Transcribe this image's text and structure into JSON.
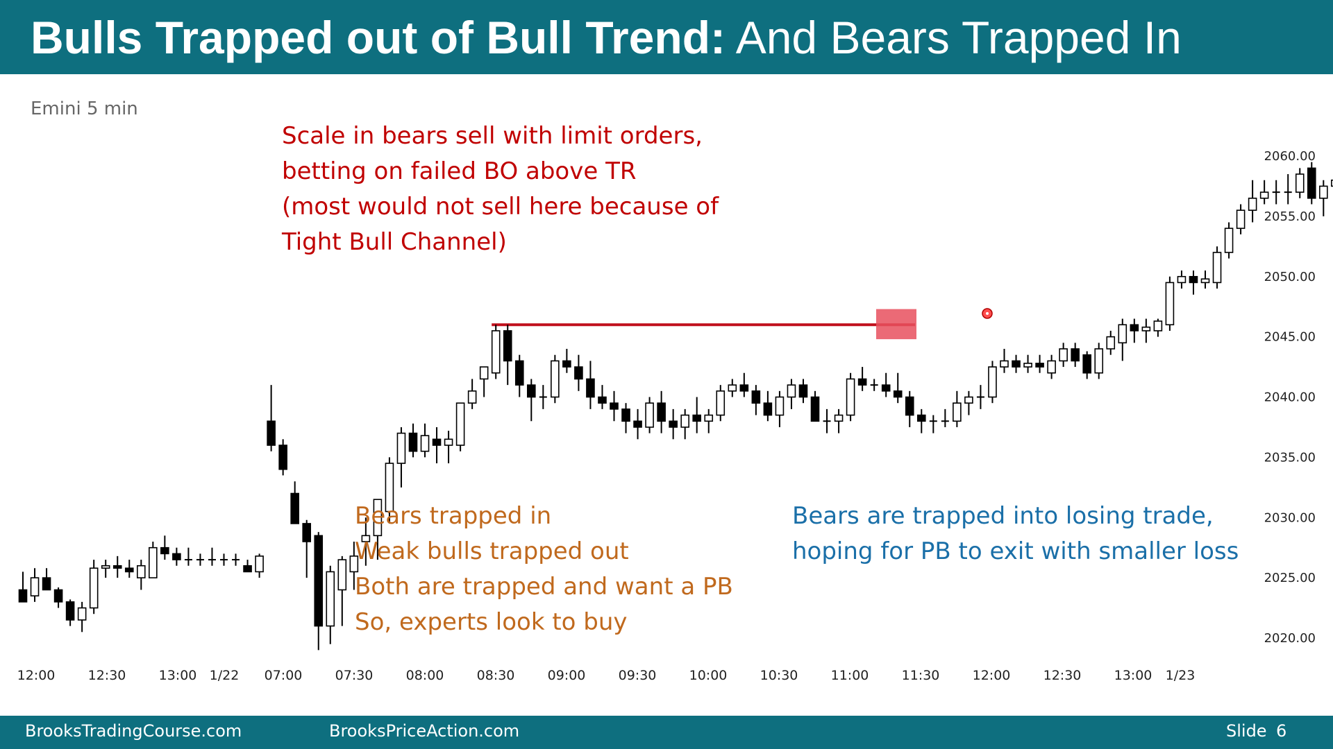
{
  "header": {
    "title_bold": "Bulls Trapped out of Bull Trend:",
    "title_normal": "And Bears Trapped In"
  },
  "chart_label": "Emini 5 min",
  "notes": {
    "red": [
      "Scale in bears sell with limit orders,",
      "betting on failed BO above TR",
      "(most would not sell here because of",
      "Tight Bull Channel)"
    ],
    "orange": [
      "Bears trapped in",
      "Weak bulls trapped out",
      "Both are trapped and want a PB",
      "So, experts look to buy"
    ],
    "blue": [
      "Bears are trapped into losing trade,",
      "hoping for PB to exit with smaller loss"
    ]
  },
  "footer": {
    "left": "BrooksTradingCourse.com",
    "middle": "BrooksPriceAction.com",
    "slide_label": "Slide",
    "slide_number": "6"
  },
  "colors": {
    "header_bg": "#0e6f7f",
    "red_note": "#c00000",
    "orange_note": "#c0691d",
    "blue_note": "#1a6fa8",
    "resistance_line": "#c0101c",
    "highlight": "#e8505e"
  },
  "chart_data": {
    "type": "candlestick",
    "title": "Emini 5 min",
    "ylim": [
      2017.5,
      2063.0
    ],
    "yticks": [
      "2060.00",
      "2055.00",
      "2050.00",
      "2045.00",
      "2040.00",
      "2035.00",
      "2030.00",
      "2025.00",
      "2020.00"
    ],
    "xticks": [
      "12:00",
      "12:30",
      "13:00",
      "1/22",
      "07:00",
      "07:30",
      "08:00",
      "08:30",
      "09:00",
      "09:30",
      "10:00",
      "10:30",
      "11:00",
      "11:30",
      "12:00",
      "12:30",
      "13:00",
      "1/23"
    ],
    "resistance_level": 2046.0,
    "bars": [
      [
        2024.0,
        2025.5,
        2023.0,
        2023.0
      ],
      [
        2023.5,
        2025.8,
        2023.0,
        2025.0
      ],
      [
        2025.0,
        2025.8,
        2024.0,
        2024.0
      ],
      [
        2024.0,
        2024.2,
        2022.5,
        2023.0
      ],
      [
        2023.0,
        2023.2,
        2021.0,
        2021.5
      ],
      [
        2021.5,
        2023.0,
        2020.5,
        2022.5
      ],
      [
        2022.5,
        2026.5,
        2022.0,
        2025.8
      ],
      [
        2025.8,
        2026.5,
        2025.0,
        2026.0
      ],
      [
        2026.0,
        2026.8,
        2025.0,
        2025.8
      ],
      [
        2025.8,
        2026.5,
        2025.0,
        2025.5
      ],
      [
        2025.0,
        2026.5,
        2024.0,
        2026.0
      ],
      [
        2025.0,
        2028.0,
        2025.0,
        2027.5
      ],
      [
        2027.5,
        2028.5,
        2026.5,
        2027.0
      ],
      [
        2027.0,
        2027.5,
        2026.0,
        2026.5
      ],
      [
        2026.5,
        2027.5,
        2026.0,
        2026.5
      ],
      [
        2026.5,
        2027.0,
        2026.0,
        2026.5
      ],
      [
        2026.5,
        2027.5,
        2026.0,
        2026.5
      ],
      [
        2026.5,
        2027.0,
        2026.0,
        2026.5
      ],
      [
        2026.5,
        2027.0,
        2026.0,
        2026.5
      ],
      [
        2026.0,
        2026.5,
        2025.5,
        2025.5
      ],
      [
        2025.5,
        2027.0,
        2025.0,
        2026.8
      ],
      [
        2038.0,
        2041.0,
        2035.5,
        2036.0
      ],
      [
        2036.0,
        2036.5,
        2033.5,
        2034.0
      ],
      [
        2032.0,
        2033.0,
        2029.5,
        2029.5
      ],
      [
        2029.5,
        2029.8,
        2025.0,
        2028.0
      ],
      [
        2028.5,
        2028.8,
        2019.0,
        2021.0
      ],
      [
        2021.0,
        2026.0,
        2019.5,
        2025.5
      ],
      [
        2024.0,
        2026.8,
        2021.0,
        2026.5
      ],
      [
        2025.5,
        2028.0,
        2024.0,
        2026.8
      ],
      [
        2028.0,
        2030.0,
        2026.0,
        2028.5
      ],
      [
        2028.5,
        2031.5,
        2026.5,
        2031.5
      ],
      [
        2030.5,
        2035.0,
        2029.5,
        2034.5
      ],
      [
        2034.5,
        2037.5,
        2032.5,
        2037.0
      ],
      [
        2037.0,
        2037.8,
        2035.0,
        2035.5
      ],
      [
        2035.5,
        2037.8,
        2035.0,
        2036.8
      ],
      [
        2036.5,
        2037.5,
        2034.5,
        2036.0
      ],
      [
        2036.0,
        2037.2,
        2034.5,
        2036.5
      ],
      [
        2036.0,
        2039.5,
        2035.5,
        2039.5
      ],
      [
        2039.5,
        2041.5,
        2039.0,
        2040.5
      ],
      [
        2041.5,
        2042.5,
        2040.0,
        2042.5
      ],
      [
        2042.0,
        2046.0,
        2041.5,
        2045.5
      ],
      [
        2045.5,
        2046.0,
        2041.0,
        2043.0
      ],
      [
        2043.0,
        2043.5,
        2040.0,
        2041.0
      ],
      [
        2041.0,
        2041.5,
        2038.0,
        2040.0
      ],
      [
        2040.0,
        2041.0,
        2039.0,
        2040.0
      ],
      [
        2040.0,
        2043.5,
        2039.5,
        2043.0
      ],
      [
        2043.0,
        2044.0,
        2042.0,
        2042.5
      ],
      [
        2042.5,
        2043.5,
        2040.5,
        2041.5
      ],
      [
        2041.5,
        2043.0,
        2039.0,
        2040.0
      ],
      [
        2040.0,
        2041.0,
        2039.0,
        2039.5
      ],
      [
        2039.5,
        2040.5,
        2038.0,
        2039.0
      ],
      [
        2039.0,
        2039.5,
        2037.0,
        2038.0
      ],
      [
        2038.0,
        2039.0,
        2036.5,
        2037.5
      ],
      [
        2037.5,
        2040.0,
        2037.0,
        2039.5
      ],
      [
        2039.5,
        2040.5,
        2037.0,
        2038.0
      ],
      [
        2038.0,
        2039.0,
        2036.5,
        2037.5
      ],
      [
        2037.5,
        2039.0,
        2036.5,
        2038.5
      ],
      [
        2038.5,
        2040.0,
        2037.0,
        2038.0
      ],
      [
        2038.0,
        2039.0,
        2037.0,
        2038.5
      ],
      [
        2038.5,
        2041.0,
        2038.0,
        2040.5
      ],
      [
        2040.5,
        2041.5,
        2040.0,
        2041.0
      ],
      [
        2041.0,
        2042.0,
        2040.0,
        2040.5
      ],
      [
        2040.5,
        2041.0,
        2038.5,
        2039.5
      ],
      [
        2039.5,
        2040.5,
        2038.0,
        2038.5
      ],
      [
        2038.5,
        2040.5,
        2037.5,
        2040.0
      ],
      [
        2040.0,
        2041.5,
        2039.0,
        2041.0
      ],
      [
        2041.0,
        2041.5,
        2039.5,
        2040.0
      ],
      [
        2040.0,
        2040.5,
        2038.0,
        2038.0
      ],
      [
        2038.0,
        2039.0,
        2037.0,
        2038.0
      ],
      [
        2038.0,
        2039.0,
        2037.0,
        2038.5
      ],
      [
        2038.5,
        2042.0,
        2038.0,
        2041.5
      ],
      [
        2041.5,
        2042.5,
        2040.5,
        2041.0
      ],
      [
        2041.0,
        2041.5,
        2040.5,
        2041.0
      ],
      [
        2041.0,
        2042.0,
        2040.0,
        2040.5
      ],
      [
        2040.5,
        2042.0,
        2039.5,
        2040.0
      ],
      [
        2040.0,
        2040.5,
        2037.5,
        2038.5
      ],
      [
        2038.5,
        2039.0,
        2037.0,
        2038.0
      ],
      [
        2038.0,
        2038.5,
        2037.0,
        2038.0
      ],
      [
        2038.0,
        2039.0,
        2037.5,
        2038.0
      ],
      [
        2038.0,
        2040.5,
        2037.5,
        2039.5
      ],
      [
        2039.5,
        2040.5,
        2038.5,
        2040.0
      ],
      [
        2040.0,
        2041.0,
        2039.0,
        2040.0
      ],
      [
        2040.0,
        2043.0,
        2039.5,
        2042.5
      ],
      [
        2042.5,
        2044.0,
        2042.0,
        2043.0
      ],
      [
        2043.0,
        2043.5,
        2042.0,
        2042.5
      ],
      [
        2042.5,
        2043.5,
        2042.0,
        2042.8
      ],
      [
        2042.8,
        2043.5,
        2042.0,
        2042.5
      ],
      [
        2042.0,
        2043.5,
        2041.5,
        2043.0
      ],
      [
        2043.0,
        2044.5,
        2042.5,
        2044.0
      ],
      [
        2044.0,
        2044.5,
        2042.5,
        2043.0
      ],
      [
        2043.5,
        2043.8,
        2041.5,
        2042.0
      ],
      [
        2042.0,
        2044.5,
        2041.5,
        2044.0
      ],
      [
        2044.0,
        2045.5,
        2043.5,
        2045.0
      ],
      [
        2044.5,
        2046.5,
        2043.0,
        2046.0
      ],
      [
        2046.0,
        2046.5,
        2044.5,
        2045.5
      ],
      [
        2045.5,
        2046.5,
        2044.5,
        2045.8
      ],
      [
        2045.5,
        2046.5,
        2045.0,
        2046.3
      ],
      [
        2046.0,
        2050.0,
        2045.5,
        2049.5
      ],
      [
        2049.5,
        2050.5,
        2049.0,
        2050.0
      ],
      [
        2050.0,
        2050.5,
        2048.5,
        2049.5
      ],
      [
        2049.5,
        2050.5,
        2049.0,
        2049.8
      ],
      [
        2049.5,
        2052.5,
        2049.0,
        2052.0
      ],
      [
        2052.0,
        2054.5,
        2051.5,
        2054.0
      ],
      [
        2054.0,
        2056.0,
        2053.5,
        2055.5
      ],
      [
        2055.5,
        2058.0,
        2054.5,
        2056.5
      ],
      [
        2056.5,
        2058.0,
        2056.0,
        2057.0
      ],
      [
        2057.0,
        2058.0,
        2056.0,
        2057.0
      ],
      [
        2057.0,
        2058.5,
        2056.0,
        2057.0
      ],
      [
        2057.0,
        2059.0,
        2056.5,
        2058.5
      ],
      [
        2059.0,
        2059.5,
        2056.0,
        2056.5
      ],
      [
        2056.5,
        2058.0,
        2055.0,
        2057.5
      ],
      [
        2057.5,
        2058.5,
        2057.0,
        2058.0
      ],
      [
        2058.0,
        2058.5,
        2056.5,
        2057.0
      ],
      [
        2057.0,
        2058.0,
        2056.0,
        2056.5
      ],
      [
        2056.5,
        2057.0,
        2055.5,
        2056.0
      ],
      [
        2056.0,
        2057.0,
        2055.5,
        2056.0
      ],
      [
        2056.0,
        2057.0,
        2055.0,
        2056.5
      ],
      [
        2056.5,
        2058.0,
        2056.0,
        2057.5
      ],
      [
        2057.5,
        2058.0,
        2055.5,
        2055.5
      ],
      [
        2055.5,
        2056.0,
        2054.5,
        2055.0
      ],
      [
        2055.0,
        2056.0,
        2054.5,
        2055.2
      ],
      [
        2055.0,
        2057.0,
        2054.0,
        2056.5
      ]
    ]
  }
}
